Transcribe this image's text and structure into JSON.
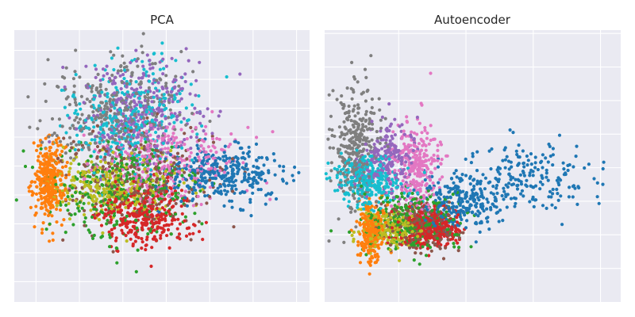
{
  "chart_data": [
    {
      "type": "scatter",
      "title": "PCA",
      "xlabel": "",
      "ylabel": "",
      "axes_visible_ticks": false,
      "grid": true,
      "background": "#eaeaf2",
      "xlim": [
        -1.0,
        5.8
      ],
      "ylim": [
        -4.2,
        5.2
      ],
      "xgrid": [
        -0.5,
        0.5,
        1.5,
        2.5,
        3.5,
        4.5,
        5.5
      ],
      "ygrid": [
        -3.5,
        -2.5,
        -1.5,
        -0.5,
        0.5,
        1.5,
        2.5,
        3.5,
        4.5
      ],
      "series": [
        {
          "color": "#1f77b4",
          "clusters": [
            {
              "cx": 3.8,
              "cy": 0.2,
              "sx": 0.75,
              "sy": 0.45,
              "n": 340
            }
          ]
        },
        {
          "color": "#ff7f0e",
          "clusters": [
            {
              "cx": -0.2,
              "cy": 0.0,
              "sx": 0.18,
              "sy": 0.7,
              "n": 330
            }
          ]
        },
        {
          "color": "#2ca02c",
          "clusters": [
            {
              "cx": 1.6,
              "cy": -0.3,
              "sx": 0.8,
              "sy": 0.85,
              "n": 320
            }
          ]
        },
        {
          "color": "#d62728",
          "clusters": [
            {
              "cx": 2.0,
              "cy": -1.2,
              "sx": 0.55,
              "sy": 0.55,
              "n": 330
            }
          ]
        },
        {
          "color": "#9467bd",
          "clusters": [
            {
              "cx": 2.0,
              "cy": 2.4,
              "sx": 0.7,
              "sy": 0.9,
              "n": 320
            }
          ]
        },
        {
          "color": "#8c564b",
          "clusters": [
            {
              "cx": 1.8,
              "cy": 0.1,
              "sx": 0.9,
              "sy": 0.8,
              "n": 300
            }
          ]
        },
        {
          "color": "#e377c2",
          "clusters": [
            {
              "cx": 2.5,
              "cy": 0.7,
              "sx": 0.8,
              "sy": 0.7,
              "n": 300
            }
          ]
        },
        {
          "color": "#7f7f7f",
          "clusters": [
            {
              "cx": 1.3,
              "cy": 2.4,
              "sx": 0.75,
              "sy": 0.9,
              "n": 330
            }
          ]
        },
        {
          "color": "#bcbd22",
          "clusters": [
            {
              "cx": 1.3,
              "cy": -0.2,
              "sx": 0.7,
              "sy": 0.55,
              "n": 300
            }
          ]
        },
        {
          "color": "#17becf",
          "clusters": [
            {
              "cx": 1.6,
              "cy": 2.2,
              "sx": 0.75,
              "sy": 0.95,
              "n": 300
            }
          ]
        }
      ]
    },
    {
      "type": "scatter",
      "title": "Autoencoder",
      "xlabel": "",
      "ylabel": "",
      "axes_visible_ticks": false,
      "grid": true,
      "background": "#eaeaf2",
      "xlim": [
        -3.2,
        5.6
      ],
      "ylim": [
        -3.5,
        4.6
      ],
      "xgrid": [
        -1.0,
        1.0,
        3.0,
        5.0
      ],
      "ygrid": [
        -2.5,
        -1.5,
        -0.5,
        0.5,
        1.5,
        2.5,
        3.5,
        4.5
      ],
      "series": [
        {
          "color": "#1f77b4",
          "clusters": [
            {
              "cx": 0.8,
              "cy": -0.5,
              "sx": 0.6,
              "sy": 0.4,
              "n": 260
            },
            {
              "cx": 2.9,
              "cy": 0.2,
              "sx": 1.0,
              "sy": 0.55,
              "n": 200
            }
          ]
        },
        {
          "color": "#ff7f0e",
          "clusters": [
            {
              "cx": -1.8,
              "cy": -1.4,
              "sx": 0.18,
              "sy": 0.45,
              "n": 260
            }
          ]
        },
        {
          "color": "#2ca02c",
          "clusters": [
            {
              "cx": -0.6,
              "cy": -1.1,
              "sx": 0.7,
              "sy": 0.45,
              "n": 300
            }
          ]
        },
        {
          "color": "#d62728",
          "clusters": [
            {
              "cx": -0.1,
              "cy": -1.3,
              "sx": 0.45,
              "sy": 0.3,
              "n": 320
            }
          ]
        },
        {
          "color": "#9467bd",
          "clusters": [
            {
              "cx": -1.4,
              "cy": 0.7,
              "sx": 0.45,
              "sy": 0.5,
              "n": 220
            }
          ]
        },
        {
          "color": "#8c564b",
          "clusters": [
            {
              "cx": -0.4,
              "cy": -1.2,
              "sx": 0.6,
              "sy": 0.35,
              "n": 220
            }
          ]
        },
        {
          "color": "#e377c2",
          "clusters": [
            {
              "cx": -0.5,
              "cy": 0.6,
              "sx": 0.35,
              "sy": 0.65,
              "n": 280
            }
          ]
        },
        {
          "color": "#7f7f7f",
          "clusters": [
            {
              "cx": -2.3,
              "cy": 1.2,
              "sx": 0.35,
              "sy": 0.85,
              "n": 330
            }
          ]
        },
        {
          "color": "#bcbd22",
          "clusters": [
            {
              "cx": -1.2,
              "cy": -1.3,
              "sx": 0.5,
              "sy": 0.3,
              "n": 220
            }
          ]
        },
        {
          "color": "#17becf",
          "clusters": [
            {
              "cx": -1.9,
              "cy": 0.1,
              "sx": 0.5,
              "sy": 0.4,
              "n": 300
            }
          ]
        }
      ]
    }
  ]
}
